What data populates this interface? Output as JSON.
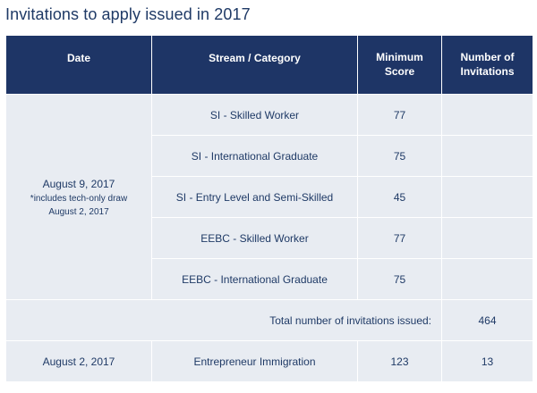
{
  "title": "Invitations to apply issued in 2017",
  "table": {
    "headers": {
      "date": "Date",
      "stream": "Stream / Category",
      "min_score_line1": "Minimum",
      "min_score_line2": "Score",
      "invitations_line1": "Number of",
      "invitations_line2": "Invitations"
    },
    "group1": {
      "date": "August 9, 2017",
      "note_line1": "*includes tech-only draw",
      "note_line2": "August 2, 2017",
      "rows": [
        {
          "stream": "SI - Skilled Worker",
          "score": "77",
          "invitations": ""
        },
        {
          "stream": "SI - International Graduate",
          "score": "75",
          "invitations": ""
        },
        {
          "stream": "SI - Entry Level and Semi-Skilled",
          "score": "45",
          "invitations": ""
        },
        {
          "stream": "EEBC - Skilled Worker",
          "score": "77",
          "invitations": ""
        },
        {
          "stream": "EEBC - International Graduate",
          "score": "75",
          "invitations": ""
        }
      ],
      "total_label": "Total number of invitations issued:",
      "total_value": "464"
    },
    "group2": {
      "date": "August 2, 2017",
      "stream": "Entrepreneur Immigration",
      "score": "123",
      "invitations": "13"
    }
  },
  "colors": {
    "header_bg": "#1e3566",
    "row_bg": "#e8ecf2",
    "text": "#1f3a66"
  }
}
